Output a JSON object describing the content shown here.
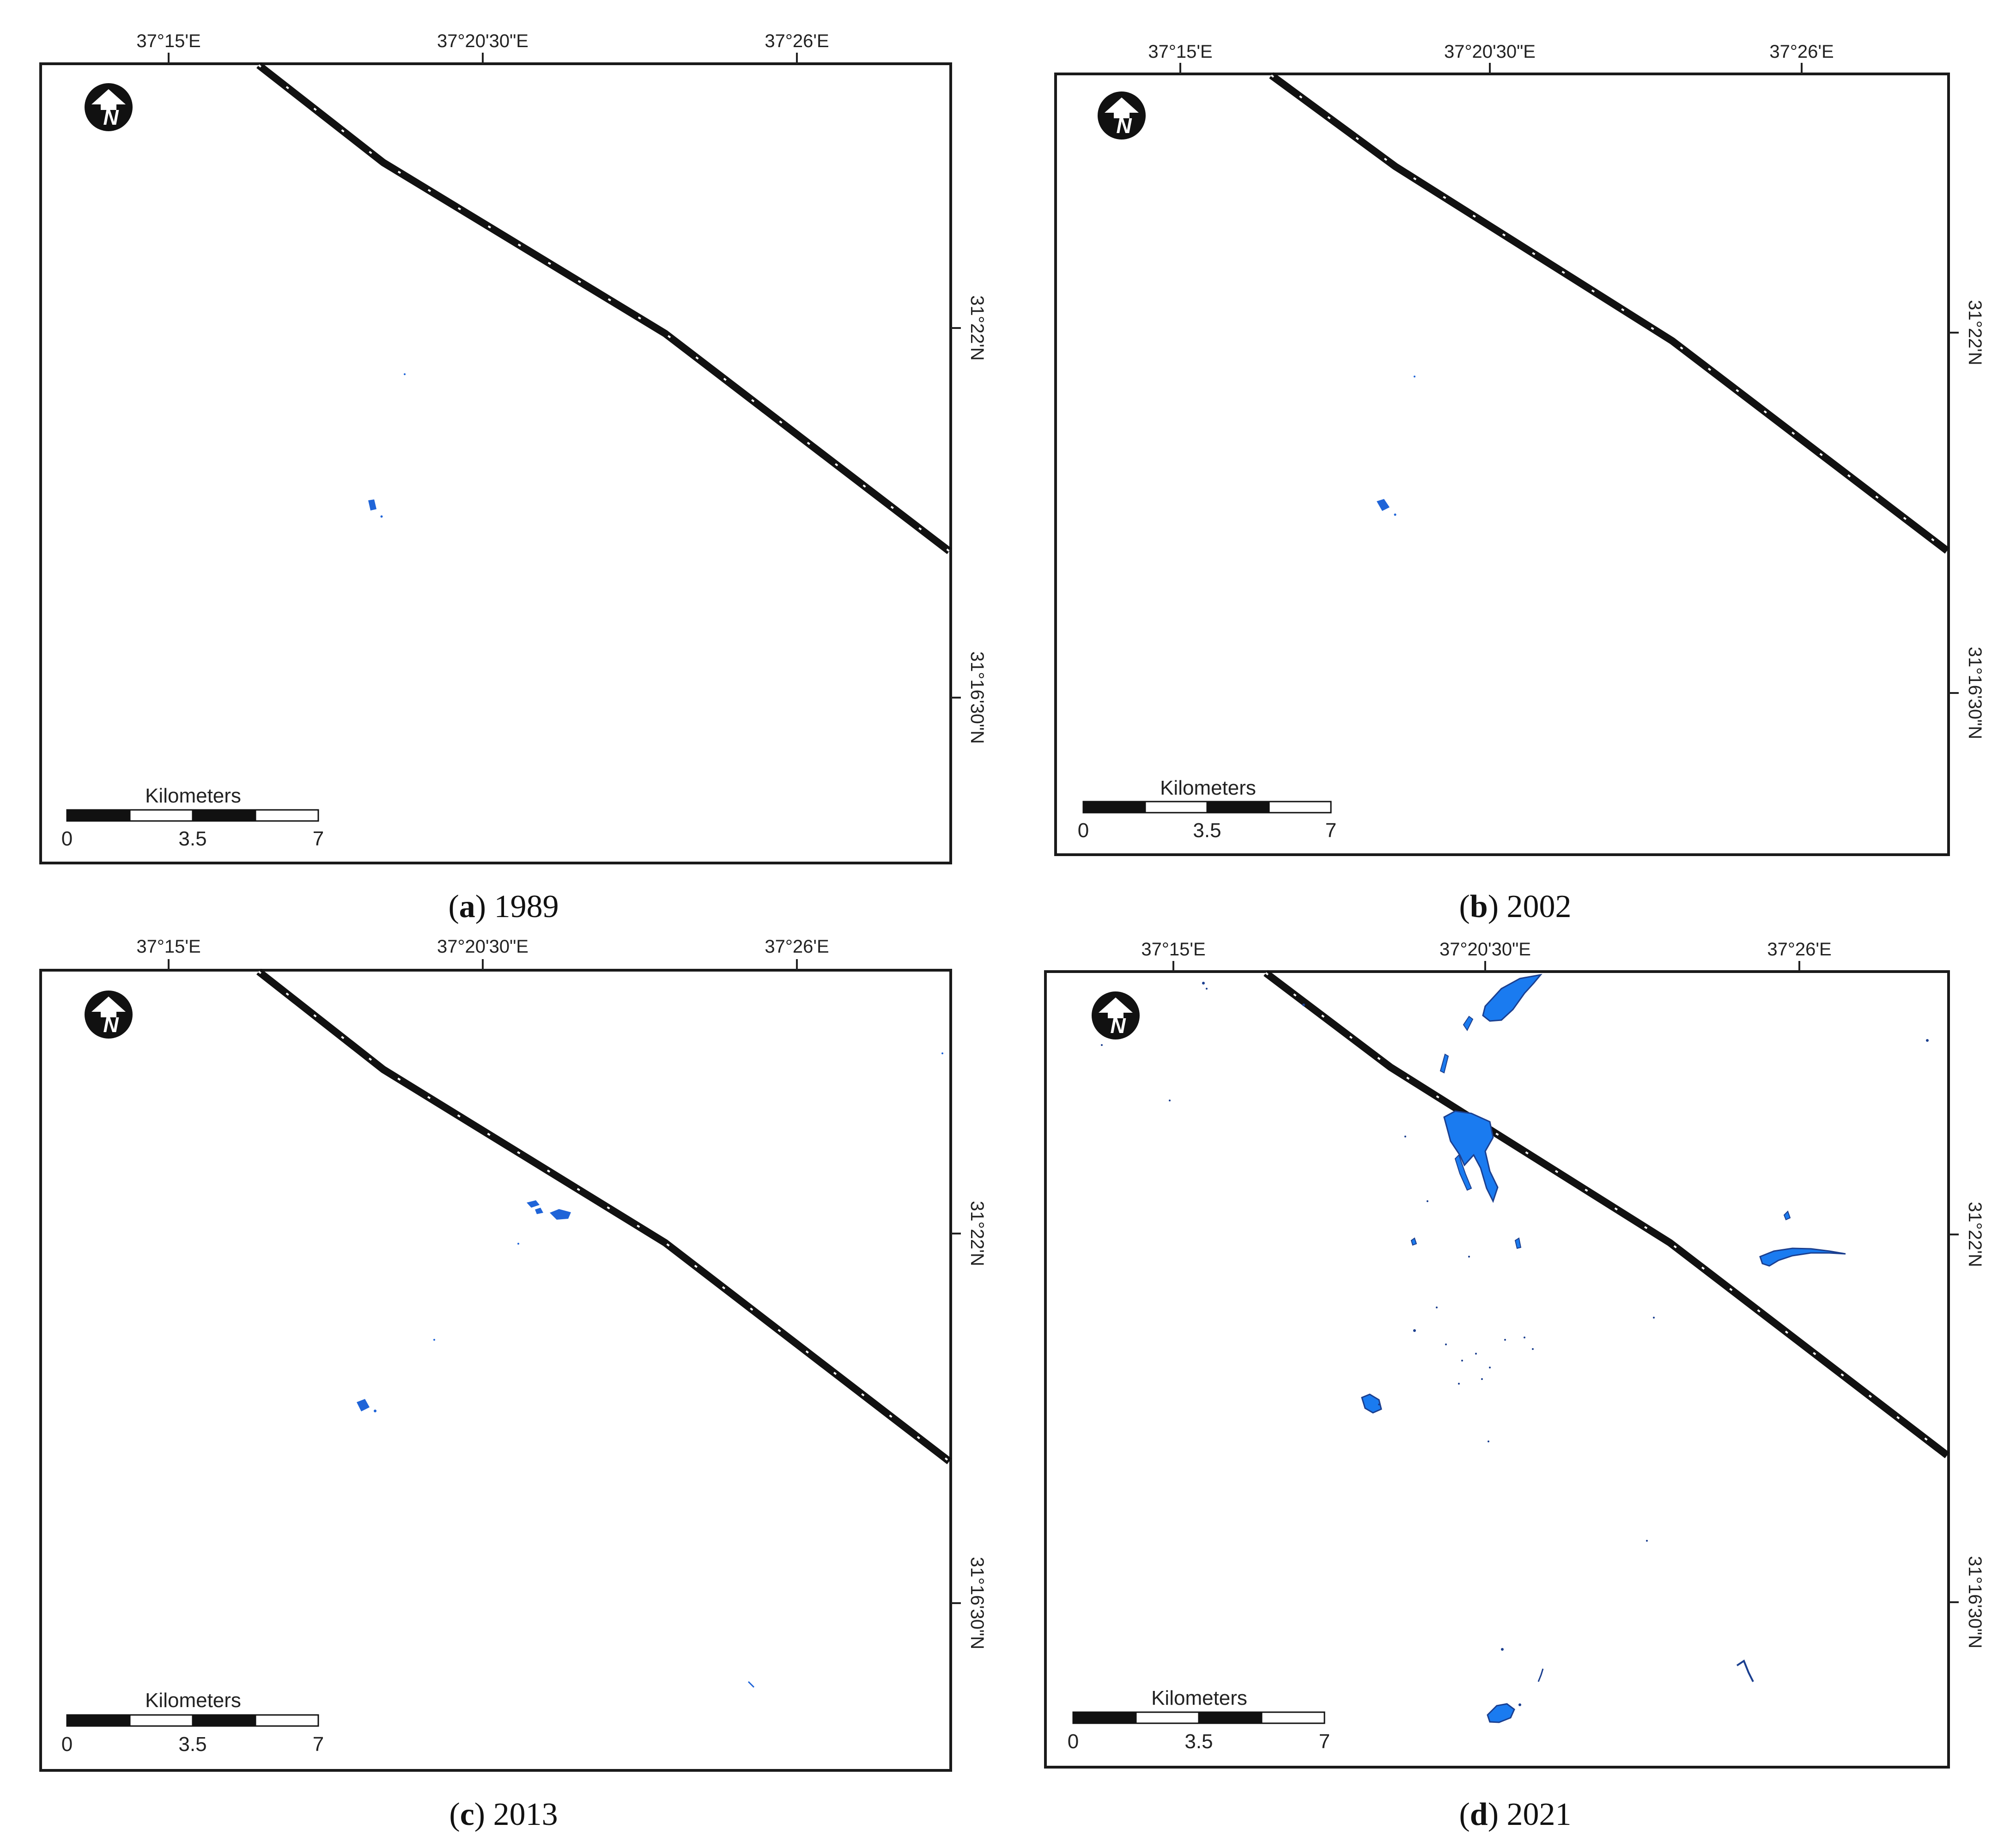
{
  "figure": {
    "panels": [
      {
        "id": "a",
        "caption_letter": "a",
        "caption_year": " 1989",
        "lon_labels": [
          "37°15'E",
          "37°20'30\"E",
          "37°26'E"
        ],
        "lat_labels": [
          "31°22'N",
          "31°16'30\"N"
        ],
        "scale_title": "Kilometers",
        "scale_ticks": [
          "0",
          "3.5",
          "7"
        ],
        "north_letter": "N"
      },
      {
        "id": "b",
        "caption_letter": "b",
        "caption_year": " 2002",
        "lon_labels": [
          "37°15'E",
          "37°20'30\"E",
          "37°26'E"
        ],
        "lat_labels": [
          "31°22'N",
          "31°16'30\"N"
        ],
        "scale_title": "Kilometers",
        "scale_ticks": [
          "0",
          "3.5",
          "7"
        ],
        "north_letter": "N"
      },
      {
        "id": "c",
        "caption_letter": "c",
        "caption_year": " 2013",
        "lon_labels": [
          "37°15'E",
          "37°20'30\"E",
          "37°26'E"
        ],
        "lat_labels": [
          "31°22'N",
          "31°16'30\"N"
        ],
        "scale_title": "Kilometers",
        "scale_ticks": [
          "0",
          "3.5",
          "7"
        ],
        "north_letter": "N"
      },
      {
        "id": "d",
        "caption_letter": "d",
        "caption_year": " 2021",
        "lon_labels": [
          "37°15'E",
          "37°20'30\"E",
          "37°26'E"
        ],
        "lat_labels": [
          "31°22'N",
          "31°16'30\"N"
        ],
        "scale_title": "Kilometers",
        "scale_ticks": [
          "0",
          "3.5",
          "7"
        ],
        "north_letter": "N"
      }
    ],
    "colors": {
      "water": "#1f64d8",
      "water_bright": "#1a7bf0",
      "frame": "#1a1a1a",
      "road": "#111111"
    }
  }
}
